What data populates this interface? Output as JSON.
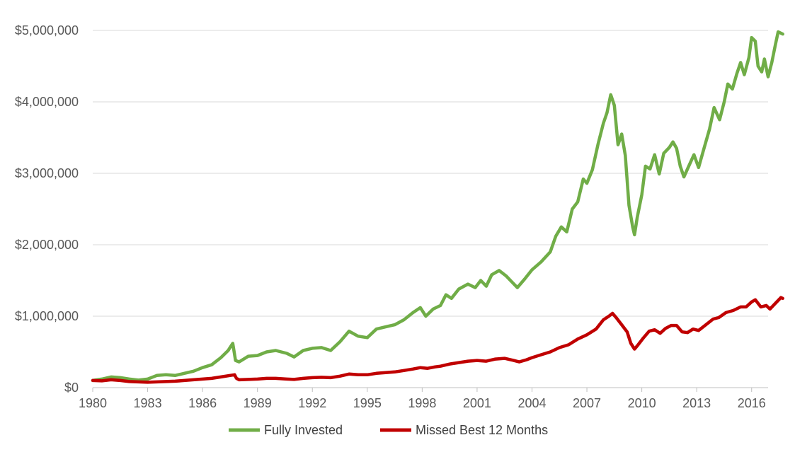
{
  "chart_data": {
    "type": "line",
    "title": "",
    "xlabel": "",
    "ylabel": "",
    "xlim": [
      1980,
      2016.9
    ],
    "ylim": [
      0,
      5000000
    ],
    "x_ticks": [
      1980,
      1983,
      1986,
      1989,
      1992,
      1995,
      1998,
      2001,
      2004,
      2007,
      2010,
      2013,
      2016
    ],
    "x_tick_labels": [
      "1980",
      "1983",
      "1986",
      "1989",
      "1992",
      "1995",
      "1998",
      "2001",
      "2004",
      "2007",
      "2010",
      "2013",
      "2016"
    ],
    "y_ticks": [
      0,
      1000000,
      2000000,
      3000000,
      4000000,
      5000000
    ],
    "y_tick_labels": [
      "$0",
      "$1,000,000",
      "$2,000,000",
      "$3,000,000",
      "$4,000,000",
      "$5,000,000"
    ],
    "grid": "horizontal",
    "legend_position": "bottom",
    "series": [
      {
        "name": "Fully Invested",
        "color": "#70AD47",
        "points": [
          [
            1980.0,
            100000
          ],
          [
            1980.5,
            120000
          ],
          [
            1981.0,
            150000
          ],
          [
            1981.5,
            140000
          ],
          [
            1982.0,
            120000
          ],
          [
            1982.5,
            105000
          ],
          [
            1983.0,
            120000
          ],
          [
            1983.5,
            170000
          ],
          [
            1984.0,
            180000
          ],
          [
            1984.5,
            170000
          ],
          [
            1985.0,
            200000
          ],
          [
            1985.5,
            230000
          ],
          [
            1986.0,
            280000
          ],
          [
            1986.5,
            320000
          ],
          [
            1987.0,
            420000
          ],
          [
            1987.4,
            520000
          ],
          [
            1987.65,
            620000
          ],
          [
            1987.8,
            380000
          ],
          [
            1988.0,
            360000
          ],
          [
            1988.5,
            440000
          ],
          [
            1989.0,
            450000
          ],
          [
            1989.5,
            500000
          ],
          [
            1990.0,
            520000
          ],
          [
            1990.6,
            480000
          ],
          [
            1991.0,
            430000
          ],
          [
            1991.5,
            520000
          ],
          [
            1992.0,
            550000
          ],
          [
            1992.5,
            560000
          ],
          [
            1993.0,
            520000
          ],
          [
            1993.5,
            640000
          ],
          [
            1994.0,
            790000
          ],
          [
            1994.5,
            720000
          ],
          [
            1995.0,
            700000
          ],
          [
            1995.5,
            820000
          ],
          [
            1996.0,
            850000
          ],
          [
            1996.5,
            880000
          ],
          [
            1997.0,
            950000
          ],
          [
            1997.5,
            1050000
          ],
          [
            1997.9,
            1120000
          ],
          [
            1998.2,
            1000000
          ],
          [
            1998.6,
            1100000
          ],
          [
            1999.0,
            1150000
          ],
          [
            1999.3,
            1300000
          ],
          [
            1999.6,
            1250000
          ],
          [
            2000.0,
            1380000
          ],
          [
            2000.5,
            1450000
          ],
          [
            2000.9,
            1400000
          ],
          [
            2001.2,
            1500000
          ],
          [
            2001.5,
            1420000
          ],
          [
            2001.8,
            1580000
          ],
          [
            2002.2,
            1640000
          ],
          [
            2002.6,
            1560000
          ],
          [
            2002.9,
            1480000
          ],
          [
            2003.2,
            1400000
          ],
          [
            2003.6,
            1520000
          ],
          [
            2004.0,
            1650000
          ],
          [
            2004.5,
            1760000
          ],
          [
            2005.0,
            1900000
          ],
          [
            2005.3,
            2120000
          ],
          [
            2005.6,
            2250000
          ],
          [
            2005.9,
            2180000
          ],
          [
            2006.2,
            2500000
          ],
          [
            2006.5,
            2600000
          ],
          [
            2006.8,
            2920000
          ],
          [
            2007.0,
            2860000
          ],
          [
            2007.3,
            3050000
          ],
          [
            2007.6,
            3400000
          ],
          [
            2007.9,
            3700000
          ],
          [
            2008.1,
            3850000
          ],
          [
            2008.3,
            4100000
          ],
          [
            2008.5,
            3950000
          ],
          [
            2008.7,
            3400000
          ],
          [
            2008.9,
            3550000
          ],
          [
            2009.1,
            3250000
          ],
          [
            2009.3,
            2550000
          ],
          [
            2009.5,
            2250000
          ],
          [
            2009.6,
            2140000
          ],
          [
            2009.75,
            2380000
          ],
          [
            2010.0,
            2700000
          ],
          [
            2010.2,
            3100000
          ],
          [
            2010.45,
            3060000
          ],
          [
            2010.7,
            3260000
          ],
          [
            2010.95,
            2990000
          ],
          [
            2011.2,
            3280000
          ],
          [
            2011.5,
            3360000
          ],
          [
            2011.7,
            3440000
          ],
          [
            2011.9,
            3350000
          ],
          [
            2012.1,
            3100000
          ],
          [
            2012.3,
            2950000
          ],
          [
            2012.6,
            3120000
          ],
          [
            2012.85,
            3260000
          ],
          [
            2013.1,
            3080000
          ],
          [
            2013.4,
            3350000
          ],
          [
            2013.7,
            3620000
          ],
          [
            2013.95,
            3920000
          ],
          [
            2014.25,
            3750000
          ],
          [
            2014.5,
            4000000
          ],
          [
            2014.7,
            4250000
          ],
          [
            2014.95,
            4180000
          ],
          [
            2015.2,
            4400000
          ],
          [
            2015.4,
            4550000
          ],
          [
            2015.6,
            4380000
          ],
          [
            2015.85,
            4620000
          ],
          [
            2016.0,
            4900000
          ],
          [
            2016.2,
            4850000
          ],
          [
            2016.35,
            4500000
          ],
          [
            2016.55,
            4420000
          ],
          [
            2016.7,
            4600000
          ],
          [
            2016.9,
            4350000
          ],
          [
            2017.1,
            4550000
          ],
          [
            2017.3,
            4800000
          ],
          [
            2017.45,
            4980000
          ],
          [
            2017.7,
            4950000
          ]
        ]
      },
      {
        "name": "Missed Best 12 Months",
        "color": "#C00000",
        "points": [
          [
            1980.0,
            100000
          ],
          [
            1980.5,
            95000
          ],
          [
            1981.0,
            110000
          ],
          [
            1981.5,
            100000
          ],
          [
            1982.0,
            85000
          ],
          [
            1982.5,
            80000
          ],
          [
            1983.0,
            75000
          ],
          [
            1983.5,
            80000
          ],
          [
            1984.0,
            85000
          ],
          [
            1984.5,
            90000
          ],
          [
            1985.0,
            100000
          ],
          [
            1985.5,
            110000
          ],
          [
            1986.0,
            120000
          ],
          [
            1986.5,
            130000
          ],
          [
            1987.0,
            150000
          ],
          [
            1987.5,
            170000
          ],
          [
            1987.75,
            180000
          ],
          [
            1987.85,
            130000
          ],
          [
            1988.0,
            110000
          ],
          [
            1988.5,
            115000
          ],
          [
            1989.0,
            120000
          ],
          [
            1989.5,
            130000
          ],
          [
            1990.0,
            130000
          ],
          [
            1990.6,
            120000
          ],
          [
            1991.0,
            115000
          ],
          [
            1991.5,
            130000
          ],
          [
            1992.0,
            140000
          ],
          [
            1992.5,
            145000
          ],
          [
            1993.0,
            140000
          ],
          [
            1993.5,
            160000
          ],
          [
            1994.0,
            190000
          ],
          [
            1994.5,
            180000
          ],
          [
            1995.0,
            180000
          ],
          [
            1995.5,
            200000
          ],
          [
            1996.0,
            210000
          ],
          [
            1996.5,
            220000
          ],
          [
            1997.0,
            240000
          ],
          [
            1997.5,
            260000
          ],
          [
            1997.9,
            280000
          ],
          [
            1998.3,
            270000
          ],
          [
            1998.7,
            290000
          ],
          [
            1999.0,
            300000
          ],
          [
            1999.5,
            330000
          ],
          [
            2000.0,
            350000
          ],
          [
            2000.5,
            370000
          ],
          [
            2001.0,
            380000
          ],
          [
            2001.5,
            370000
          ],
          [
            2002.0,
            400000
          ],
          [
            2002.5,
            410000
          ],
          [
            2003.0,
            380000
          ],
          [
            2003.3,
            360000
          ],
          [
            2003.7,
            390000
          ],
          [
            2004.0,
            420000
          ],
          [
            2004.5,
            460000
          ],
          [
            2005.0,
            500000
          ],
          [
            2005.5,
            560000
          ],
          [
            2006.0,
            600000
          ],
          [
            2006.5,
            680000
          ],
          [
            2007.0,
            740000
          ],
          [
            2007.5,
            820000
          ],
          [
            2007.9,
            950000
          ],
          [
            2008.2,
            1000000
          ],
          [
            2008.4,
            1040000
          ],
          [
            2008.6,
            980000
          ],
          [
            2008.9,
            880000
          ],
          [
            2009.2,
            780000
          ],
          [
            2009.4,
            620000
          ],
          [
            2009.6,
            540000
          ],
          [
            2009.8,
            600000
          ],
          [
            2010.1,
            700000
          ],
          [
            2010.4,
            790000
          ],
          [
            2010.7,
            810000
          ],
          [
            2011.0,
            760000
          ],
          [
            2011.3,
            830000
          ],
          [
            2011.6,
            870000
          ],
          [
            2011.9,
            870000
          ],
          [
            2012.2,
            780000
          ],
          [
            2012.5,
            770000
          ],
          [
            2012.8,
            820000
          ],
          [
            2013.1,
            800000
          ],
          [
            2013.5,
            880000
          ],
          [
            2013.9,
            960000
          ],
          [
            2014.2,
            980000
          ],
          [
            2014.6,
            1050000
          ],
          [
            2015.0,
            1080000
          ],
          [
            2015.4,
            1130000
          ],
          [
            2015.7,
            1130000
          ],
          [
            2016.0,
            1200000
          ],
          [
            2016.2,
            1230000
          ],
          [
            2016.5,
            1130000
          ],
          [
            2016.8,
            1150000
          ],
          [
            2017.0,
            1100000
          ],
          [
            2017.3,
            1180000
          ],
          [
            2017.6,
            1260000
          ],
          [
            2017.7,
            1250000
          ]
        ]
      }
    ]
  }
}
